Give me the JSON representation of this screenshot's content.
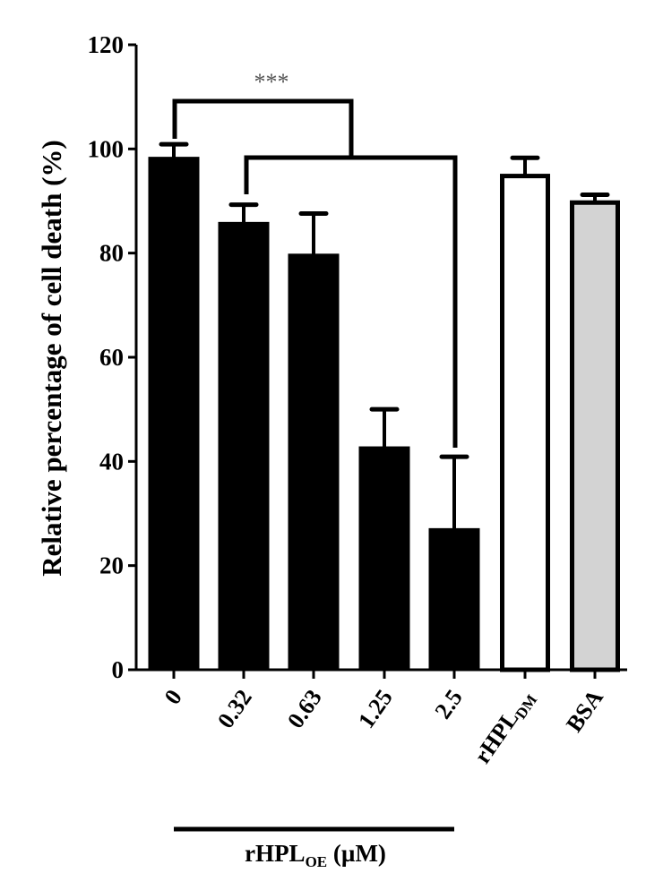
{
  "chart_data": {
    "type": "bar",
    "title": "",
    "ylabel": "Relative percentage of cell death (%)",
    "xlabel": "rHPL_OE (µM)",
    "xlabel_main": "rHPL",
    "xlabel_sub": "OE",
    "xlabel_unit": " (µM)",
    "ylim": [
      0,
      120
    ],
    "yticks": [
      0,
      20,
      40,
      60,
      80,
      100,
      120
    ],
    "grid": false,
    "legend": "none",
    "categories": [
      "0",
      "0.32",
      "0.63",
      "1.25",
      "2.5",
      "rHPL_DM",
      "BSA"
    ],
    "category_labels": [
      {
        "main": "0",
        "sub": ""
      },
      {
        "main": "0.32",
        "sub": ""
      },
      {
        "main": "0.63",
        "sub": ""
      },
      {
        "main": "1.25",
        "sub": ""
      },
      {
        "main": "2.5",
        "sub": ""
      },
      {
        "main": "rHPL",
        "sub": "DM"
      },
      {
        "main": "BSA",
        "sub": ""
      }
    ],
    "values": [
      98.4,
      85.9,
      79.8,
      42.8,
      27.1,
      94.8,
      89.7
    ],
    "error_upper": [
      2.5,
      3.4,
      7.8,
      7.2,
      13.8,
      3.5,
      1.5
    ],
    "bar_colors": [
      "#000000",
      "#000000",
      "#000000",
      "#000000",
      "#000000",
      "#ffffff",
      "#d3d3d3"
    ],
    "group_bracket": {
      "from_index": 0,
      "to_index": 4,
      "label": "rHPL_OE (µM)"
    },
    "annotations": [
      {
        "type": "significance",
        "label": "***",
        "compare": "0 vs 0.32–2.5"
      }
    ]
  },
  "annotation_text": "***"
}
